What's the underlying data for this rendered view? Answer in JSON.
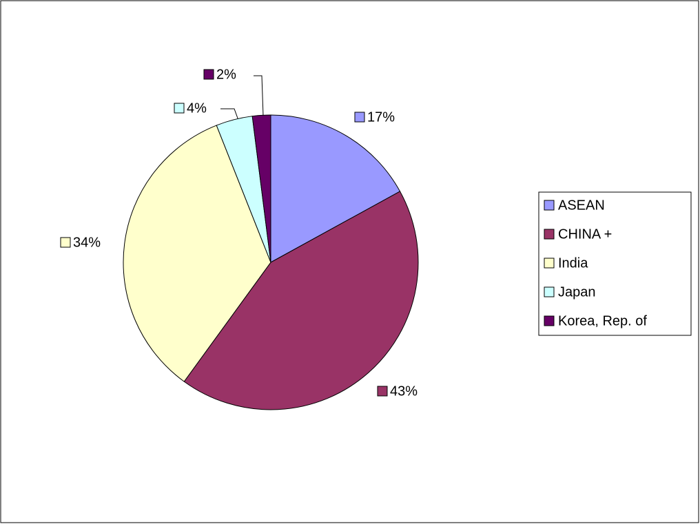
{
  "chart_data": {
    "type": "pie",
    "categories": [
      "ASEAN",
      "CHINA +",
      "India",
      "Japan",
      "Korea, Rep. of"
    ],
    "values": [
      17,
      43,
      34,
      4,
      2
    ],
    "value_labels": [
      "17%",
      "43%",
      "34%",
      "4%",
      "2%"
    ],
    "colors": [
      "#9999ff",
      "#993366",
      "#ffffcc",
      "#ccffff",
      "#660066"
    ],
    "legend": "right"
  }
}
